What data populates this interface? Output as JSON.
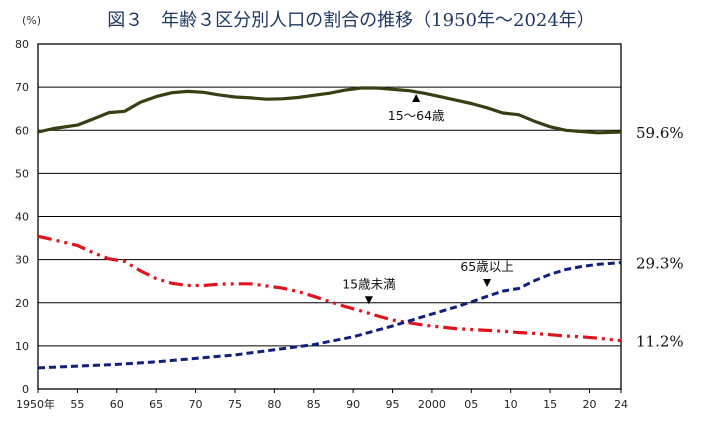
{
  "chart_data": {
    "type": "line",
    "title": "図３　年齢３区分別人口の割合の推移（1950年～2024年）",
    "unit_label": "(%)",
    "ylim": [
      0,
      80
    ],
    "yticks": [
      0,
      10,
      20,
      30,
      40,
      50,
      60,
      70,
      80
    ],
    "xlim": [
      1950,
      2024
    ],
    "xticks": [
      {
        "year": 1950,
        "label": "1950年"
      },
      {
        "year": 1955,
        "label": "55"
      },
      {
        "year": 1960,
        "label": "60"
      },
      {
        "year": 1965,
        "label": "65"
      },
      {
        "year": 1970,
        "label": "70"
      },
      {
        "year": 1975,
        "label": "75"
      },
      {
        "year": 1980,
        "label": "80"
      },
      {
        "year": 1985,
        "label": "85"
      },
      {
        "year": 1990,
        "label": "90"
      },
      {
        "year": 1995,
        "label": "95"
      },
      {
        "year": 2000,
        "label": "2000"
      },
      {
        "year": 2005,
        "label": "05"
      },
      {
        "year": 2010,
        "label": "10"
      },
      {
        "year": 2015,
        "label": "15"
      },
      {
        "year": 2020,
        "label": "20"
      },
      {
        "year": 2024,
        "label": "24"
      }
    ],
    "grid": true,
    "series": [
      {
        "name": "15～64歳",
        "color": "#3b3d13",
        "style": "solid",
        "end_label": "59.6%",
        "annotation": {
          "text": "15～64歳",
          "year": 1998,
          "value": 68.4,
          "arrow": "up"
        },
        "points": [
          [
            1950,
            59.6
          ],
          [
            1952,
            60.4
          ],
          [
            1955,
            61.2
          ],
          [
            1957,
            62.6
          ],
          [
            1959,
            64.1
          ],
          [
            1961,
            64.4
          ],
          [
            1963,
            66.5
          ],
          [
            1965,
            67.8
          ],
          [
            1967,
            68.7
          ],
          [
            1969,
            69.0
          ],
          [
            1971,
            68.8
          ],
          [
            1973,
            68.2
          ],
          [
            1975,
            67.7
          ],
          [
            1977,
            67.5
          ],
          [
            1979,
            67.2
          ],
          [
            1981,
            67.3
          ],
          [
            1983,
            67.6
          ],
          [
            1985,
            68.1
          ],
          [
            1987,
            68.6
          ],
          [
            1989,
            69.3
          ],
          [
            1991,
            69.8
          ],
          [
            1993,
            69.8
          ],
          [
            1995,
            69.5
          ],
          [
            1997,
            69.2
          ],
          [
            1999,
            68.6
          ],
          [
            2001,
            67.8
          ],
          [
            2003,
            67.0
          ],
          [
            2005,
            66.2
          ],
          [
            2007,
            65.2
          ],
          [
            2009,
            64.0
          ],
          [
            2011,
            63.6
          ],
          [
            2013,
            62.1
          ],
          [
            2015,
            60.8
          ],
          [
            2017,
            60.0
          ],
          [
            2019,
            59.7
          ],
          [
            2021,
            59.4
          ],
          [
            2024,
            59.6
          ]
        ]
      },
      {
        "name": "15歳未満",
        "color": "#e0141e",
        "style": "dashdot",
        "end_label": "11.2%",
        "annotation": {
          "text": "15歳未満",
          "year": 1992,
          "value": 21.5,
          "arrow": "down"
        },
        "points": [
          [
            1950,
            35.4
          ],
          [
            1952,
            34.6
          ],
          [
            1955,
            33.3
          ],
          [
            1957,
            31.6
          ],
          [
            1959,
            30.2
          ],
          [
            1961,
            29.6
          ],
          [
            1963,
            27.4
          ],
          [
            1965,
            25.6
          ],
          [
            1967,
            24.5
          ],
          [
            1969,
            24.0
          ],
          [
            1971,
            24.0
          ],
          [
            1973,
            24.3
          ],
          [
            1975,
            24.4
          ],
          [
            1977,
            24.4
          ],
          [
            1979,
            23.9
          ],
          [
            1981,
            23.4
          ],
          [
            1983,
            22.6
          ],
          [
            1985,
            21.5
          ],
          [
            1987,
            20.3
          ],
          [
            1989,
            19.1
          ],
          [
            1991,
            18.1
          ],
          [
            1993,
            17.0
          ],
          [
            1995,
            16.0
          ],
          [
            1997,
            15.4
          ],
          [
            1999,
            14.8
          ],
          [
            2001,
            14.4
          ],
          [
            2003,
            14.0
          ],
          [
            2005,
            13.8
          ],
          [
            2007,
            13.6
          ],
          [
            2009,
            13.4
          ],
          [
            2011,
            13.1
          ],
          [
            2013,
            12.9
          ],
          [
            2015,
            12.6
          ],
          [
            2017,
            12.3
          ],
          [
            2019,
            12.1
          ],
          [
            2021,
            11.8
          ],
          [
            2024,
            11.2
          ]
        ]
      },
      {
        "name": "65歳以上",
        "color": "#0f1f7a",
        "style": "dashed",
        "end_label": "29.3%",
        "annotation": {
          "text": "65歳以上",
          "year": 2007,
          "value": 25.5,
          "arrow": "down"
        },
        "points": [
          [
            1950,
            4.9
          ],
          [
            1955,
            5.3
          ],
          [
            1960,
            5.7
          ],
          [
            1965,
            6.3
          ],
          [
            1970,
            7.1
          ],
          [
            1975,
            7.9
          ],
          [
            1980,
            9.1
          ],
          [
            1985,
            10.3
          ],
          [
            1990,
            12.1
          ],
          [
            1995,
            14.6
          ],
          [
            2000,
            17.4
          ],
          [
            2003,
            19.0
          ],
          [
            2005,
            20.2
          ],
          [
            2007,
            21.5
          ],
          [
            2009,
            22.7
          ],
          [
            2011,
            23.3
          ],
          [
            2013,
            25.1
          ],
          [
            2015,
            26.6
          ],
          [
            2017,
            27.7
          ],
          [
            2019,
            28.4
          ],
          [
            2021,
            28.9
          ],
          [
            2024,
            29.3
          ]
        ]
      }
    ]
  }
}
